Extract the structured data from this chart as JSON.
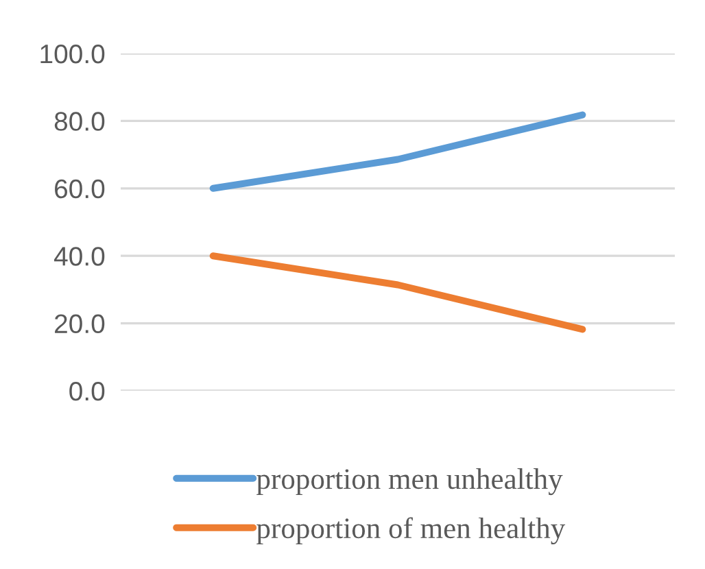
{
  "chart_data": {
    "type": "line",
    "categories": [
      null,
      null,
      null
    ],
    "series": [
      {
        "name": "proportion men unhealthy",
        "color": "#5b9bd5",
        "values": [
          60.0,
          68.6,
          81.8
        ]
      },
      {
        "name": "proportion of men healthy",
        "color": "#ed7d31",
        "values": [
          40.0,
          31.4,
          18.2
        ]
      }
    ],
    "ylim": [
      0,
      100
    ],
    "yticks": [
      {
        "value": 0,
        "label": "0.0"
      },
      {
        "value": 20,
        "label": "20.0"
      },
      {
        "value": 40,
        "label": "40.0"
      },
      {
        "value": 60,
        "label": "60.0"
      },
      {
        "value": 80,
        "label": "80.0"
      },
      {
        "value": 100,
        "label": "100.0"
      }
    ],
    "grid": "y",
    "legend": "bottom"
  }
}
